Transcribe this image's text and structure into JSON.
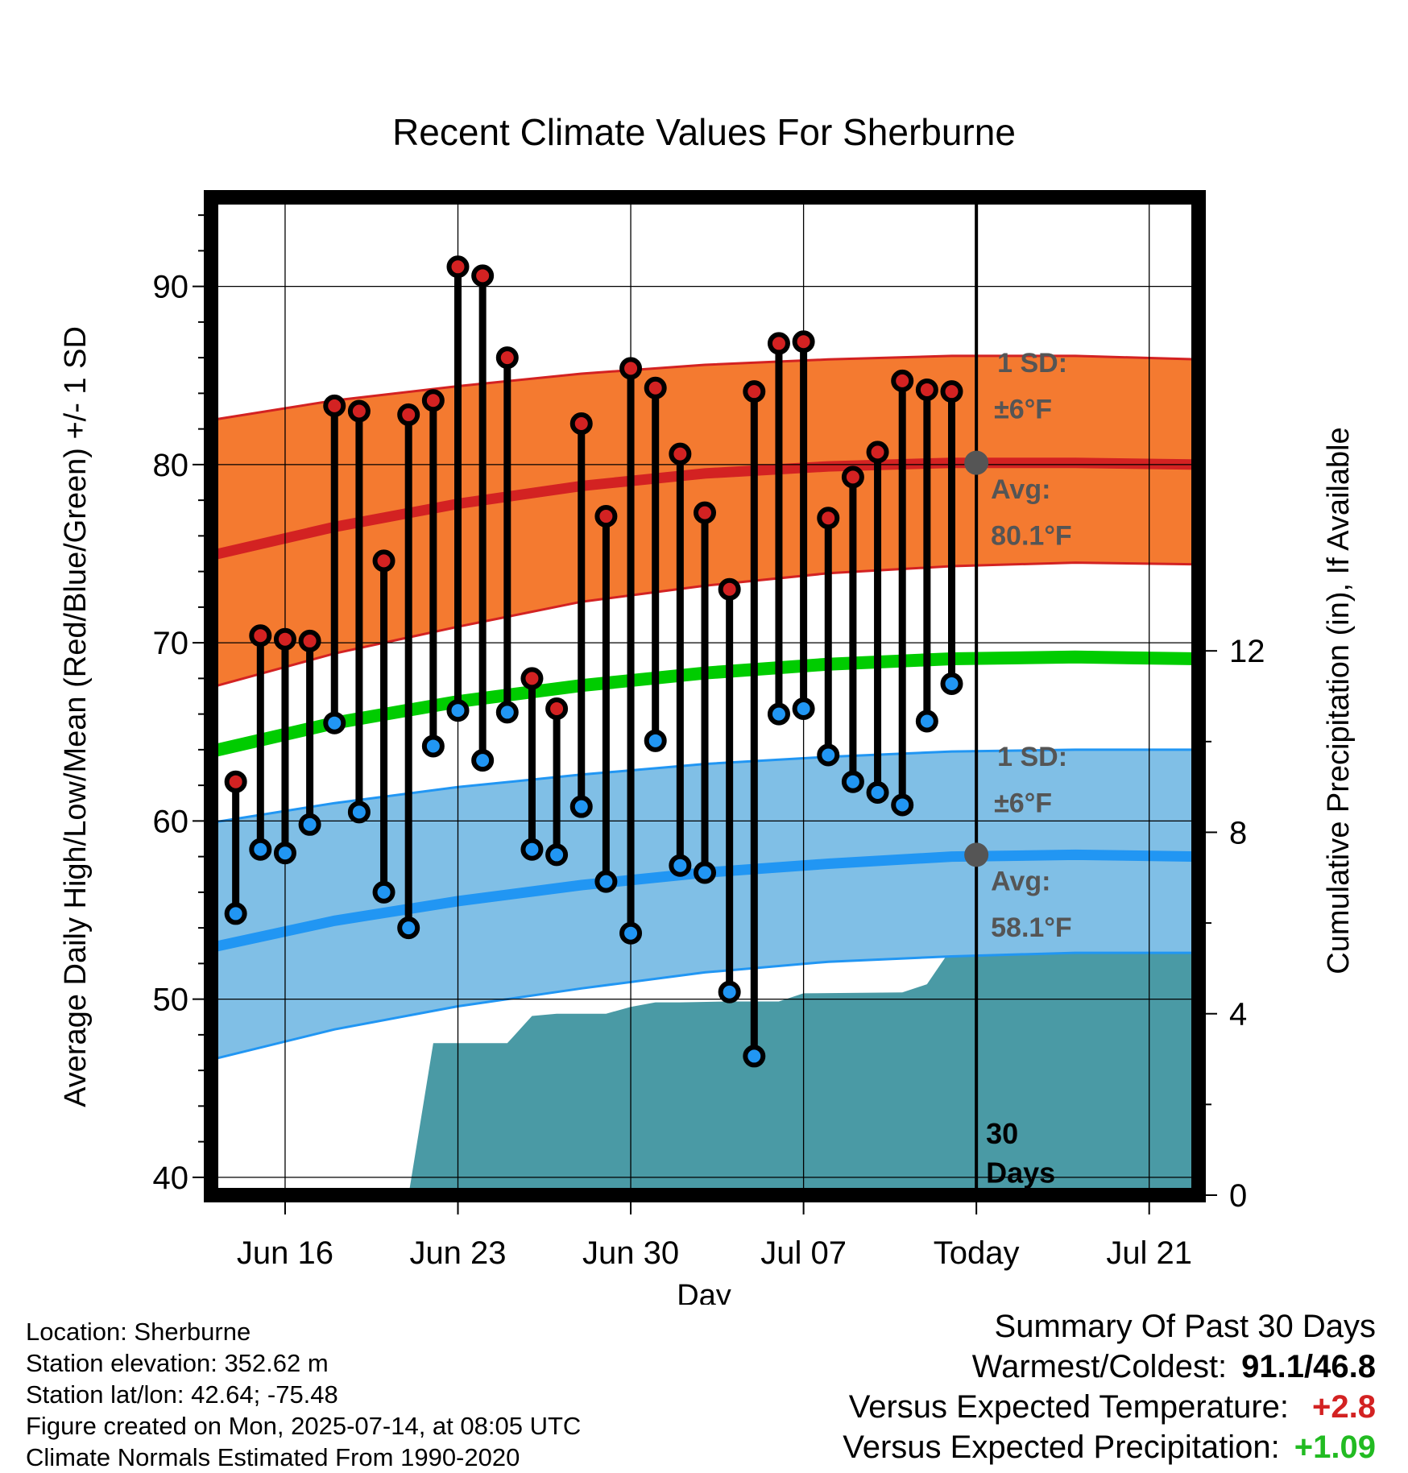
{
  "colors": {
    "high": "#d32222",
    "low": "#2196f3",
    "high_sd_band": "#f47a30",
    "low_sd_band": "#80bfe6",
    "mean": "#00cc00",
    "precip": "#4a9aa5",
    "annot": "#555555",
    "positive_temp": "#d32222",
    "positive_precip": "#22bb22"
  },
  "chart_data": {
    "type": "line",
    "title": "Recent Climate Values For Sherburne",
    "xlabel": "Day",
    "ylabel": "Average Daily High/Low/Mean (Red/Blue/Green) +/- 1 SD",
    "y2label": "Cumulative Precipitation (in), If Available",
    "ylim": [
      39,
      95
    ],
    "y2lim": [
      0,
      22
    ],
    "xlim": [
      "2025-06-13",
      "2025-07-23"
    ],
    "grid": true,
    "x_ticks": [
      {
        "date": "2025-06-16",
        "label": "Jun 16"
      },
      {
        "date": "2025-06-23",
        "label": "Jun 23"
      },
      {
        "date": "2025-06-30",
        "label": "Jun 30"
      },
      {
        "date": "2025-07-07",
        "label": "Jul 07"
      },
      {
        "date": "2025-07-14",
        "label": "Today"
      },
      {
        "date": "2025-07-21",
        "label": "Jul 21"
      }
    ],
    "y_ticks": [
      40,
      50,
      60,
      70,
      80,
      90
    ],
    "y2_ticks": [
      0,
      4,
      8,
      12
    ],
    "today": "2025-07-14",
    "today_label": "30 Days",
    "observed": {
      "dates": [
        "2025-06-14",
        "2025-06-15",
        "2025-06-16",
        "2025-06-17",
        "2025-06-18",
        "2025-06-19",
        "2025-06-20",
        "2025-06-21",
        "2025-06-22",
        "2025-06-23",
        "2025-06-24",
        "2025-06-25",
        "2025-06-26",
        "2025-06-27",
        "2025-06-28",
        "2025-06-29",
        "2025-06-30",
        "2025-07-01",
        "2025-07-02",
        "2025-07-03",
        "2025-07-04",
        "2025-07-05",
        "2025-07-06",
        "2025-07-07",
        "2025-07-08",
        "2025-07-09",
        "2025-07-10",
        "2025-07-11",
        "2025-07-12",
        "2025-07-13"
      ],
      "high": [
        62.2,
        70.4,
        70.2,
        70.1,
        83.3,
        83.0,
        74.6,
        82.8,
        83.6,
        91.1,
        90.6,
        86.0,
        68.0,
        66.3,
        82.3,
        77.1,
        85.4,
        84.3,
        80.6,
        77.3,
        73.0,
        84.1,
        86.8,
        86.9,
        77.0,
        79.3,
        80.7,
        84.7,
        84.2,
        84.1
      ],
      "low": [
        54.8,
        58.4,
        58.2,
        59.8,
        65.5,
        60.5,
        56.0,
        54.0,
        64.2,
        66.2,
        63.4,
        66.1,
        58.4,
        58.1,
        60.8,
        56.6,
        53.7,
        64.5,
        57.5,
        57.1,
        50.4,
        46.8,
        66.0,
        66.3,
        63.7,
        62.2,
        61.6,
        60.9,
        65.6,
        67.7
      ]
    },
    "normals": {
      "dates": [
        "2025-06-13",
        "2025-06-18",
        "2025-06-23",
        "2025-06-28",
        "2025-07-03",
        "2025-07-08",
        "2025-07-13",
        "2025-07-18",
        "2025-07-23"
      ],
      "high_mean": [
        74.9,
        76.5,
        77.8,
        78.8,
        79.5,
        79.9,
        80.1,
        80.1,
        80.0
      ],
      "high_plus_sd": [
        82.5,
        83.6,
        84.4,
        85.1,
        85.6,
        85.9,
        86.1,
        86.1,
        85.9
      ],
      "high_minus_sd": [
        67.5,
        69.4,
        70.9,
        72.3,
        73.2,
        73.9,
        74.3,
        74.5,
        74.4
      ],
      "low_mean": [
        52.9,
        54.4,
        55.5,
        56.4,
        57.1,
        57.6,
        58.0,
        58.1,
        58.0
      ],
      "low_plus_sd": [
        59.9,
        61.0,
        61.9,
        62.6,
        63.2,
        63.6,
        63.9,
        64.0,
        64.0
      ],
      "low_minus_sd": [
        46.6,
        48.3,
        49.6,
        50.6,
        51.5,
        52.1,
        52.4,
        52.6,
        52.6
      ],
      "mean": [
        63.9,
        65.5,
        66.7,
        67.6,
        68.3,
        68.8,
        69.1,
        69.2,
        69.1
      ]
    },
    "precip_cumulative": {
      "dates": [
        "2025-06-21",
        "2025-06-22",
        "2025-06-25",
        "2025-06-26",
        "2025-06-27",
        "2025-06-29",
        "2025-06-30",
        "2025-07-01",
        "2025-07-02",
        "2025-07-04",
        "2025-07-05",
        "2025-07-06",
        "2025-07-07",
        "2025-07-11",
        "2025-07-12",
        "2025-07-13",
        "2025-07-23"
      ],
      "values": [
        0.0,
        3.35,
        3.35,
        3.95,
        4.0,
        4.0,
        4.15,
        4.25,
        4.25,
        4.27,
        4.27,
        4.27,
        4.45,
        4.47,
        4.65,
        5.45,
        5.45
      ]
    },
    "annotations": {
      "high_sd_label": "1 SD:",
      "high_sd_value": "±6°F",
      "high_avg_label": "Avg:",
      "high_avg_value": "80.1°F",
      "high_avg": 80.1,
      "low_sd_label": "1 SD:",
      "low_sd_value": "±6°F",
      "low_avg_label": "Avg:",
      "low_avg_value": "58.1°F",
      "low_avg": 58.1
    }
  },
  "info": {
    "location": "Location: Sherburne",
    "elevation": "Station elevation: 352.62 m",
    "latlon": "Station lat/lon: 42.64; -75.48",
    "created": "Figure created on Mon, 2025-07-14, at 08:05 UTC",
    "normals": "Climate Normals Estimated From 1990-2020"
  },
  "summary": {
    "title": "Summary Of Past 30 Days",
    "warm_cold_label": "Warmest/Coldest:",
    "warm_cold_value": "91.1/46.8",
    "temp_label": "Versus Expected Temperature:",
    "temp_value": "+2.8",
    "precip_label": "Versus Expected Precipitation:",
    "precip_value": "+1.09"
  }
}
